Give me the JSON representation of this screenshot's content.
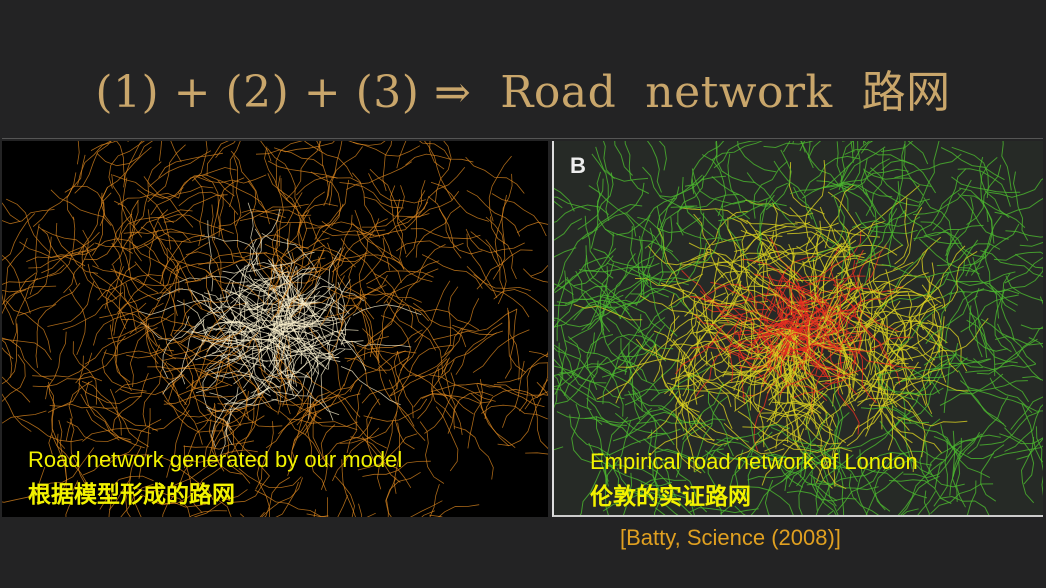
{
  "title": "(1) + (2) + (3) ⇒  Road  network  路网",
  "left_panel": {
    "caption_en": "Road network generated by our model",
    "caption_zh": "根据模型形成的路网",
    "colors": {
      "network": "#e08a20",
      "core": "#fff4d0",
      "background": "#000000",
      "caption": "#f2f200"
    }
  },
  "right_panel": {
    "panel_label": "B",
    "caption_en": "Empirical road network of London",
    "caption_zh": "伦敦的实证路网",
    "colors": {
      "outer": "#4cb830",
      "middle": "#d8d020",
      "center": "#e83020",
      "background": "#262a26"
    }
  },
  "citation": "[Batty, Science (2008)]"
}
